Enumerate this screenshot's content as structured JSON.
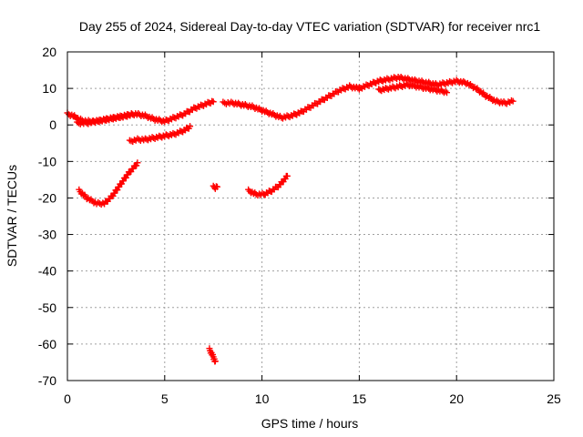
{
  "chart_data": {
    "type": "scatter",
    "title": "Day 255 of 2024, Sidereal Day-to-day VTEC variation (SDTVAR) for receiver nrc1",
    "xlabel": "GPS time / hours",
    "ylabel": "SDTVAR / TECUs",
    "xlim": [
      0,
      25
    ],
    "ylim": [
      -70,
      20
    ],
    "xticks": [
      0,
      5,
      10,
      15,
      20,
      25
    ],
    "yticks": [
      20,
      10,
      0,
      -10,
      -20,
      -30,
      -40,
      -50,
      -60,
      -70
    ],
    "grid": true,
    "marker_color": "#ff0000",
    "series": [
      {
        "name": "main-track-a",
        "x": [
          0.0,
          0.3,
          0.6,
          1.0,
          1.5,
          2.0,
          2.5,
          3.0,
          3.5,
          4.0,
          4.5,
          5.0,
          5.5,
          6.0,
          6.5,
          7.0,
          7.5
        ],
        "y": [
          3,
          2.5,
          1.5,
          1,
          1,
          1.5,
          2,
          2.5,
          3,
          2.5,
          1.5,
          1,
          2,
          3,
          4.5,
          5.5,
          6.5
        ]
      },
      {
        "name": "main-track-b",
        "x": [
          0.5,
          1.0,
          1.5,
          2.0,
          2.5,
          3.0,
          3.3
        ],
        "y": [
          0.5,
          0.5,
          1,
          1.5,
          2,
          2.5,
          3
        ]
      },
      {
        "name": "main-track-c",
        "x": [
          8.0,
          8.5,
          9.0,
          9.5,
          10.0,
          10.5,
          11.0,
          11.5,
          12.0,
          12.5,
          13.0,
          13.5,
          14.0,
          14.5,
          15.0
        ],
        "y": [
          6,
          6,
          5.5,
          5,
          4,
          3,
          2,
          2.5,
          3.5,
          5,
          6.5,
          8,
          9.5,
          10.5,
          10
        ]
      },
      {
        "name": "main-track-d",
        "x": [
          15.0,
          15.5,
          16.0,
          16.5,
          17.0,
          17.5,
          18.0,
          18.5,
          19.0,
          19.5,
          20.0,
          20.5,
          21.0,
          21.5,
          22.0,
          22.5,
          22.9
        ],
        "y": [
          10,
          11,
          12,
          12.5,
          13,
          12.5,
          12,
          11.5,
          11,
          11.5,
          12,
          11.5,
          10,
          8,
          6.5,
          6,
          6.5
        ]
      },
      {
        "name": "upper-branch",
        "x": [
          16.0,
          16.5,
          17.0,
          17.5,
          18.0,
          18.5,
          19.0,
          19.5
        ],
        "y": [
          9.5,
          10,
          10.5,
          11,
          10.5,
          10,
          9.5,
          9
        ]
      },
      {
        "name": "offset-track",
        "x": [
          3.2,
          3.6,
          4.0,
          4.5,
          5.0,
          5.5,
          6.0,
          6.3
        ],
        "y": [
          -4.5,
          -4,
          -4,
          -3.5,
          -3,
          -2.5,
          -1.5,
          -0.5
        ]
      },
      {
        "name": "dip-track-1",
        "x": [
          0.6,
          1.0,
          1.5,
          1.9,
          2.3,
          2.7,
          3.1,
          3.6
        ],
        "y": [
          -18,
          -20,
          -21.5,
          -21.5,
          -19.5,
          -16.5,
          -13.5,
          -10.5
        ]
      },
      {
        "name": "dip-track-2",
        "x": [
          9.3,
          9.7,
          10.1,
          10.5,
          10.9,
          11.3
        ],
        "y": [
          -18,
          -19,
          -19,
          -18,
          -16.5,
          -14
        ]
      },
      {
        "name": "spike-1",
        "x": [
          7.5,
          7.6,
          7.7
        ],
        "y": [
          -17,
          -17.2,
          -16.8
        ]
      },
      {
        "name": "spike-2",
        "x": [
          7.3,
          7.4,
          7.5,
          7.6
        ],
        "y": [
          -61.5,
          -62.5,
          -63.5,
          -65
        ]
      }
    ]
  }
}
